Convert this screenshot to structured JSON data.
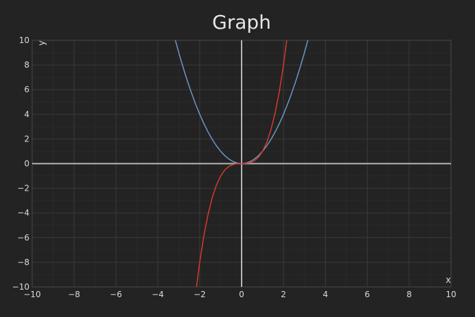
{
  "chart_data": {
    "type": "line",
    "title": "Graph",
    "xlabel": "x",
    "ylabel": "y",
    "xlim": [
      -10,
      10
    ],
    "ylim": [
      -10,
      10
    ],
    "x_ticks": [
      -10,
      -8,
      -6,
      -4,
      -2,
      0,
      2,
      4,
      6,
      8,
      10
    ],
    "y_ticks": [
      -10,
      -8,
      -6,
      -4,
      -2,
      0,
      2,
      4,
      6,
      8,
      10
    ],
    "x_tick_labels": [
      "−10",
      "−8",
      "−6",
      "−4",
      "−2",
      "0",
      "2",
      "4",
      "6",
      "8",
      "10"
    ],
    "y_tick_labels": [
      "−10",
      "−8",
      "−6",
      "−4",
      "−2",
      "0",
      "2",
      "4",
      "6",
      "8",
      "10"
    ],
    "grid": true,
    "series": [
      {
        "color": "#6f96c5",
        "x": [
          -3.2,
          -3.0,
          -2.8,
          -2.6,
          -2.4,
          -2.2,
          -2.0,
          -1.8,
          -1.6,
          -1.4,
          -1.2,
          -1.0,
          -0.8,
          -0.6,
          -0.4,
          -0.2,
          0.0,
          0.2,
          0.4,
          0.6,
          0.8,
          1.0,
          1.2,
          1.4,
          1.6,
          1.8,
          2.0,
          2.2,
          2.4,
          2.6,
          2.8,
          3.0,
          3.2
        ],
        "y": [
          10.24,
          9.0,
          7.84,
          6.76,
          5.76,
          4.84,
          4.0,
          3.24,
          2.56,
          1.96,
          1.44,
          1.0,
          0.64,
          0.36,
          0.16,
          0.04,
          0.0,
          0.04,
          0.16,
          0.36,
          0.64,
          1.0,
          1.44,
          1.96,
          2.56,
          3.24,
          4.0,
          4.84,
          5.76,
          6.76,
          7.84,
          9.0,
          10.24
        ]
      },
      {
        "color": "#d83a2e",
        "x": [
          -2.16,
          -2.0,
          -1.8,
          -1.6,
          -1.4,
          -1.2,
          -1.0,
          -0.8,
          -0.6,
          -0.4,
          -0.2,
          0.0,
          0.2,
          0.4,
          0.6,
          0.8,
          1.0,
          1.2,
          1.4,
          1.6,
          1.8,
          2.0,
          2.16
        ],
        "y": [
          -10.08,
          -8.0,
          -5.832,
          -4.096,
          -2.744,
          -1.728,
          -1.0,
          -0.512,
          -0.216,
          -0.064,
          -0.008,
          0.0,
          0.008,
          0.064,
          0.216,
          0.512,
          1.0,
          1.728,
          2.744,
          4.096,
          5.832,
          8.0,
          10.08
        ]
      }
    ],
    "colors": {
      "background": "#232323",
      "grid": "#3a3a3a",
      "axis": "#b8b8b8",
      "border": "#4a4a4a",
      "text": "#dcdcdc"
    }
  }
}
